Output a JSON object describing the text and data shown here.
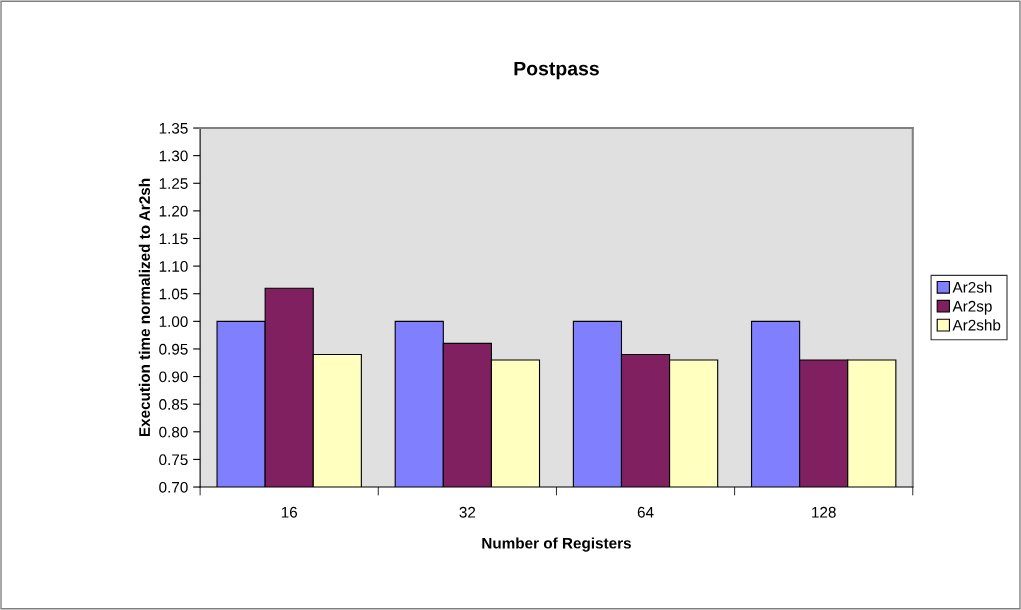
{
  "chart_data": {
    "type": "bar",
    "title": "Postpass",
    "xlabel": "Number of Registers",
    "ylabel": "Execution time normalized to Ar2sh",
    "categories": [
      "16",
      "32",
      "64",
      "128"
    ],
    "series": [
      {
        "name": "Ar2sh",
        "color": "#8080ff",
        "values": [
          1.0,
          1.0,
          1.0,
          1.0
        ]
      },
      {
        "name": "Ar2sp",
        "color": "#802060",
        "values": [
          1.06,
          0.96,
          0.94,
          0.93
        ]
      },
      {
        "name": "Ar2shb",
        "color": "#ffffc0",
        "values": [
          0.94,
          0.93,
          0.93,
          0.93
        ]
      }
    ],
    "ylim": [
      0.7,
      1.35
    ],
    "yticks": [
      {
        "value": 0.7,
        "label": "0.70"
      },
      {
        "value": 0.75,
        "label": "0.75"
      },
      {
        "value": 0.8,
        "label": "0.80"
      },
      {
        "value": 0.85,
        "label": "0.85"
      },
      {
        "value": 0.9,
        "label": "0.90"
      },
      {
        "value": 0.95,
        "label": "0.95"
      },
      {
        "value": 1.0,
        "label": "1.00"
      },
      {
        "value": 1.05,
        "label": "1.05"
      },
      {
        "value": 1.1,
        "label": "1.10"
      },
      {
        "value": 1.15,
        "label": "1.15"
      },
      {
        "value": 1.2,
        "label": "1.20"
      },
      {
        "value": 1.25,
        "label": "1.25"
      },
      {
        "value": 1.3,
        "label": "1.30"
      },
      {
        "value": 1.35,
        "label": "1.35"
      }
    ],
    "grid": false,
    "legend": "right"
  }
}
